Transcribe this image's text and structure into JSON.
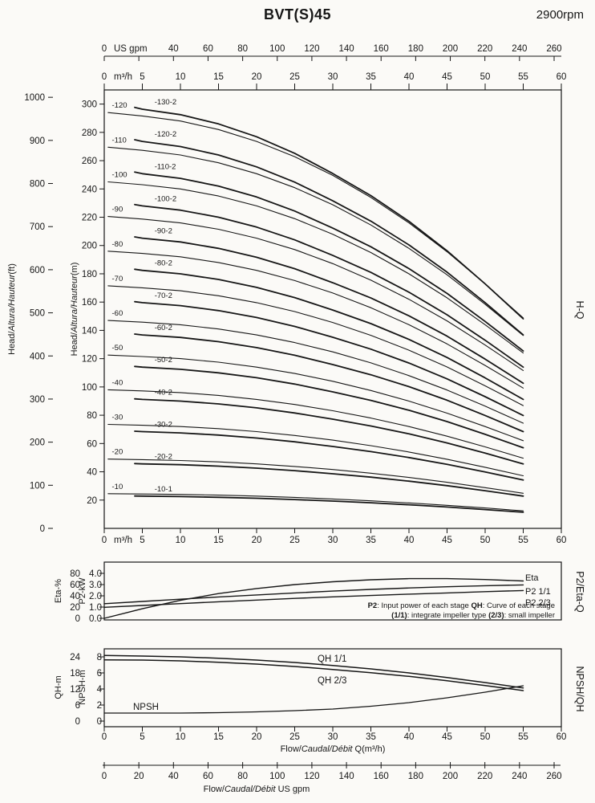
{
  "title": "BVT(S)45",
  "rpm": "2900rpm",
  "side_labels": {
    "hq": "H-Q",
    "p2eta": "P2/Eta-Q",
    "npshqh": "NPSH/QH"
  },
  "note": {
    "line1": [
      {
        "t": "P2",
        "b": true
      },
      {
        "t": ": Input power of each stage ",
        "b": false
      },
      {
        "t": "QH",
        "b": true
      },
      {
        "t": ": Curve of each stage",
        "b": false
      }
    ],
    "line2": [
      {
        "t": "(1/1)",
        "b": true
      },
      {
        "t": ": integrate impeller type ",
        "b": false
      },
      {
        "t": "(2/3)",
        "b": true
      },
      {
        "t": ": small impeller",
        "b": false
      }
    ]
  },
  "chart_data": [
    {
      "id": "hq",
      "type": "line",
      "title": "H-Q",
      "x_m3h": {
        "unit": "m³/h",
        "min": 0,
        "max": 60,
        "ticks": [
          0,
          5,
          10,
          15,
          20,
          25,
          30,
          35,
          40,
          45,
          50,
          55,
          60
        ]
      },
      "x_gpm": {
        "unit": "US gpm",
        "m3h_per_gpm": 0.22712,
        "labels": [
          0,
          40,
          60,
          80,
          100,
          120,
          140,
          160,
          180,
          200,
          220,
          240,
          260
        ],
        "marks": [
          0,
          20,
          40,
          60,
          80,
          100,
          120,
          140,
          160,
          180,
          200,
          220,
          240,
          260
        ]
      },
      "y_m": {
        "label_segments": [
          {
            "t": "Head/",
            "i": false
          },
          {
            "t": "Altura/Hauteur",
            "i": true
          },
          {
            "t": "(m)",
            "i": false
          }
        ],
        "min": 0,
        "max": 310,
        "ticks": [
          20,
          40,
          60,
          80,
          100,
          120,
          140,
          160,
          180,
          200,
          220,
          240,
          260,
          280,
          300
        ]
      },
      "y_ft": {
        "label_segments": [
          {
            "t": "Head/",
            "i": false
          },
          {
            "t": "Altura/Hauteur",
            "i": true
          },
          {
            "t": "(ft)",
            "i": false
          }
        ],
        "m_per_ft": 0.3048,
        "ticks": [
          0,
          100,
          200,
          300,
          400,
          500,
          600,
          700,
          800,
          900,
          1000
        ]
      },
      "q_full": [
        0.5,
        5,
        10,
        15,
        20,
        25,
        30,
        35,
        40,
        45,
        50,
        55
      ],
      "q_small": [
        4,
        5,
        10,
        15,
        20,
        25,
        30,
        35,
        40,
        45,
        50,
        55
      ],
      "series": [
        {
          "label": "-130-2",
          "impeller": "2/3",
          "stages": 13,
          "head_m": [
            297.7,
            296.4,
            292.5,
            286.0,
            276.9,
            265.2,
            250.9,
            235.3,
            217.1,
            196.3,
            172.9,
            148.2
          ]
        },
        {
          "label": "-120",
          "impeller": "1/1",
          "stages": 12,
          "head_m": [
            294.0,
            291.6,
            288.0,
            282.0,
            273.6,
            262.8,
            249.6,
            234.0,
            216.0,
            195.6,
            172.8,
            148.8
          ]
        },
        {
          "label": "-120-2",
          "impeller": "2/3",
          "stages": 12,
          "head_m": [
            274.8,
            273.6,
            270.0,
            264.0,
            255.6,
            244.8,
            231.6,
            217.2,
            200.4,
            181.2,
            159.6,
            136.8
          ]
        },
        {
          "label": "-110",
          "impeller": "1/1",
          "stages": 11,
          "head_m": [
            269.5,
            267.3,
            264.0,
            258.5,
            250.8,
            240.9,
            228.8,
            214.5,
            198.0,
            179.3,
            158.4,
            136.4
          ]
        },
        {
          "label": "-110-2",
          "impeller": "2/3",
          "stages": 11,
          "head_m": [
            251.9,
            250.8,
            247.5,
            242.0,
            234.3,
            224.4,
            212.3,
            199.1,
            183.7,
            166.1,
            146.3,
            125.4
          ]
        },
        {
          "label": "-100",
          "impeller": "1/1",
          "stages": 10,
          "head_m": [
            245.0,
            243.0,
            240.0,
            235.0,
            228.0,
            219.0,
            208.0,
            195.0,
            180.0,
            163.0,
            144.0,
            124.0
          ]
        },
        {
          "label": "-100-2",
          "impeller": "2/3",
          "stages": 10,
          "head_m": [
            229.0,
            228.0,
            225.0,
            220.0,
            213.0,
            204.0,
            193.0,
            181.0,
            167.0,
            151.0,
            133.0,
            114.0
          ]
        },
        {
          "label": "-90",
          "impeller": "1/1",
          "stages": 9,
          "head_m": [
            220.5,
            218.7,
            216.0,
            211.5,
            205.2,
            197.1,
            187.2,
            175.5,
            162.0,
            146.7,
            129.6,
            111.6
          ]
        },
        {
          "label": "-90-2",
          "impeller": "2/3",
          "stages": 9,
          "head_m": [
            206.1,
            205.2,
            202.5,
            198.0,
            191.7,
            183.6,
            173.7,
            162.9,
            150.3,
            135.9,
            119.7,
            102.6
          ]
        },
        {
          "label": "-80",
          "impeller": "1/1",
          "stages": 8,
          "head_m": [
            196.0,
            194.4,
            192.0,
            188.0,
            182.4,
            175.2,
            166.4,
            156.0,
            144.0,
            130.4,
            115.2,
            99.2
          ]
        },
        {
          "label": "-80-2",
          "impeller": "2/3",
          "stages": 8,
          "head_m": [
            183.2,
            182.4,
            180.0,
            176.0,
            170.4,
            163.2,
            154.4,
            144.8,
            133.6,
            120.8,
            106.4,
            91.2
          ]
        },
        {
          "label": "-70",
          "impeller": "1/1",
          "stages": 7,
          "head_m": [
            171.5,
            170.1,
            168.0,
            164.5,
            159.6,
            153.3,
            145.6,
            136.5,
            126.0,
            114.1,
            100.8,
            86.8
          ]
        },
        {
          "label": "-70-2",
          "impeller": "2/3",
          "stages": 7,
          "head_m": [
            160.3,
            159.6,
            157.5,
            154.0,
            149.1,
            142.8,
            135.1,
            126.7,
            116.9,
            105.7,
            93.1,
            79.8
          ]
        },
        {
          "label": "-60",
          "impeller": "1/1",
          "stages": 6,
          "head_m": [
            147.0,
            145.8,
            144.0,
            141.0,
            136.8,
            131.4,
            124.8,
            117.0,
            108.0,
            97.8,
            86.4,
            74.4
          ]
        },
        {
          "label": "-60-2",
          "impeller": "2/3",
          "stages": 6,
          "head_m": [
            137.4,
            136.8,
            135.0,
            132.0,
            127.8,
            122.4,
            115.8,
            108.6,
            100.2,
            90.6,
            79.8,
            68.4
          ]
        },
        {
          "label": "-50",
          "impeller": "1/1",
          "stages": 5,
          "head_m": [
            122.5,
            121.5,
            120.0,
            117.5,
            114.0,
            109.5,
            104.0,
            97.5,
            90.0,
            81.5,
            72.0,
            62.0
          ]
        },
        {
          "label": "-50-2",
          "impeller": "2/3",
          "stages": 5,
          "head_m": [
            114.5,
            114.0,
            112.5,
            110.0,
            106.5,
            102.0,
            96.5,
            90.5,
            83.5,
            75.5,
            66.5,
            57.0
          ]
        },
        {
          "label": "-40",
          "impeller": "1/1",
          "stages": 4,
          "head_m": [
            98.0,
            97.2,
            96.0,
            94.0,
            91.2,
            87.6,
            83.2,
            78.0,
            72.0,
            65.2,
            57.6,
            49.6
          ]
        },
        {
          "label": "-40-2",
          "impeller": "2/3",
          "stages": 4,
          "head_m": [
            91.6,
            91.2,
            90.0,
            88.0,
            85.2,
            81.6,
            77.2,
            72.4,
            66.8,
            60.4,
            53.2,
            45.6
          ]
        },
        {
          "label": "-30",
          "impeller": "1/1",
          "stages": 3,
          "head_m": [
            73.5,
            72.9,
            72.0,
            70.5,
            68.4,
            65.7,
            62.4,
            58.5,
            54.0,
            48.9,
            43.2,
            37.2
          ]
        },
        {
          "label": "-30-2",
          "impeller": "2/3",
          "stages": 3,
          "head_m": [
            68.7,
            68.4,
            67.5,
            66.0,
            63.9,
            61.2,
            57.9,
            54.3,
            50.1,
            45.3,
            39.9,
            34.2
          ]
        },
        {
          "label": "-20",
          "impeller": "1/1",
          "stages": 2,
          "head_m": [
            49.0,
            48.6,
            48.0,
            47.0,
            45.6,
            43.8,
            41.6,
            39.0,
            36.0,
            32.6,
            28.8,
            24.8
          ]
        },
        {
          "label": "-20-2",
          "impeller": "2/3",
          "stages": 2,
          "head_m": [
            45.8,
            45.6,
            45.0,
            44.0,
            42.6,
            40.8,
            38.6,
            36.2,
            33.4,
            30.2,
            26.6,
            22.8
          ]
        },
        {
          "label": "-10",
          "impeller": "1/1",
          "stages": 1,
          "head_m": [
            24.5,
            24.3,
            24.0,
            23.5,
            22.8,
            21.9,
            20.8,
            19.5,
            18.0,
            16.3,
            14.4,
            12.4
          ]
        },
        {
          "label": "-10-1",
          "impeller": "2/3",
          "stages": 1,
          "head_m": [
            22.9,
            22.8,
            22.5,
            22.0,
            21.3,
            20.4,
            19.3,
            18.1,
            16.7,
            15.1,
            13.3,
            11.4
          ]
        }
      ]
    },
    {
      "id": "p2eta",
      "type": "line",
      "title": "P2/Eta-Q",
      "x": [
        0,
        5,
        10,
        15,
        20,
        25,
        30,
        35,
        40,
        45,
        50,
        55
      ],
      "y_eta": {
        "label": "Eta-%",
        "ticks": [
          0,
          20,
          40,
          60,
          80
        ]
      },
      "y_p2": {
        "label": "P2-kW",
        "tick_labels": [
          "0.0",
          "1.0",
          "2.0",
          "3.0",
          "4.0"
        ],
        "tick_values": [
          0,
          1,
          2,
          3,
          4
        ]
      },
      "series": [
        {
          "name": "Eta",
          "axis": "eta",
          "values": [
            0,
            17,
            32,
            44,
            53,
            60,
            65,
            68.5,
            70.5,
            70.5,
            69,
            66.5
          ]
        },
        {
          "name": "P2 1/1",
          "axis": "kw",
          "values": [
            1.3,
            1.5,
            1.7,
            1.9,
            2.08,
            2.26,
            2.42,
            2.57,
            2.7,
            2.81,
            2.9,
            2.97
          ]
        },
        {
          "name": "P2 2/3",
          "axis": "kw",
          "values": [
            0.98,
            1.14,
            1.31,
            1.47,
            1.62,
            1.77,
            1.91,
            2.03,
            2.15,
            2.26,
            2.37,
            2.47
          ]
        }
      ]
    },
    {
      "id": "npshqh",
      "type": "line",
      "title": "NPSH/QH",
      "x": [
        0,
        5,
        10,
        15,
        20,
        25,
        30,
        35,
        40,
        45,
        50,
        55
      ],
      "y_qh": {
        "label": "QH-m",
        "ticks": [
          0,
          6,
          12,
          18,
          24
        ]
      },
      "y_npsh": {
        "label": "NPSH-m",
        "ticks": [
          0,
          2,
          4,
          6,
          8
        ]
      },
      "series": [
        {
          "name": "QH 1/1",
          "axis": "qh",
          "values": [
            24.5,
            24.3,
            24.0,
            23.5,
            22.8,
            21.9,
            20.8,
            19.5,
            18.0,
            16.3,
            14.4,
            12.4
          ]
        },
        {
          "name": "QH 2/3",
          "axis": "qh",
          "values": [
            22.9,
            22.8,
            22.5,
            22.0,
            21.3,
            20.4,
            19.3,
            18.1,
            16.7,
            15.1,
            13.3,
            11.4
          ]
        },
        {
          "name": "NPSH",
          "axis": "npsh",
          "values": [
            1.0,
            1.0,
            1.0,
            1.05,
            1.15,
            1.3,
            1.5,
            1.85,
            2.3,
            2.9,
            3.6,
            4.4
          ]
        }
      ],
      "x_title_segments": [
        {
          "t": "Flow/",
          "i": false
        },
        {
          "t": "Caudal/Débit",
          "i": true
        },
        {
          "t": " Q(m³/h)",
          "i": false
        }
      ],
      "gpm_labels": [
        0,
        20,
        40,
        60,
        80,
        100,
        120,
        140,
        160,
        180,
        200,
        220,
        240,
        260
      ],
      "gpm_title_segments": [
        {
          "t": "Flow/",
          "i": false
        },
        {
          "t": "Caudal/Débit",
          "i": true
        },
        {
          "t": "  US gpm",
          "i": false
        }
      ]
    }
  ]
}
